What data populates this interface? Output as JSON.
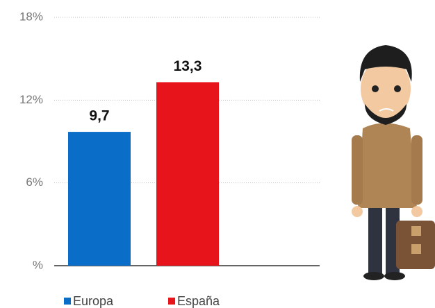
{
  "chart_data": {
    "type": "bar",
    "categories": [
      null
    ],
    "series": [
      {
        "name": "Europa",
        "color": "#0a6ec8",
        "values": [
          9.7
        ],
        "value_labels": [
          "9,7"
        ]
      },
      {
        "name": "España",
        "color": "#e8141c",
        "values": [
          13.3
        ],
        "value_labels": [
          "13,3"
        ]
      }
    ],
    "ylim": [
      0,
      18
    ],
    "yticks": [
      {
        "value": 0,
        "label": "%"
      },
      {
        "value": 6,
        "label": "6%"
      },
      {
        "value": 12,
        "label": "12%"
      },
      {
        "value": 18,
        "label": "18%"
      }
    ],
    "grid": true
  }
}
